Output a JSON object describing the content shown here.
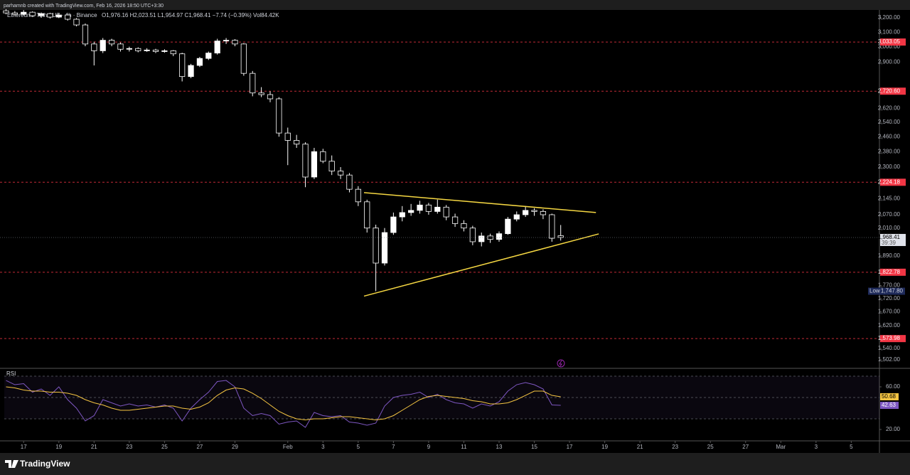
{
  "header": {
    "credit": "parhamnb created with TradingView.com, Feb 16, 2026 18:50 UTC+3:30"
  },
  "footer": {
    "brand": "TradingView"
  },
  "chart_data": [
    {
      "type": "candlestick",
      "title": "Ethereum / TetherUS · 4h · Binance",
      "subtitle": "O1,976.16 H2,023.51 L1,954.97 C1,968.41 −7.74 (−0.39%) Vol84.42K",
      "log": true,
      "xlim": [
        15.9,
        65.6
      ],
      "ylim": [
        1476,
        3251
      ],
      "up_color": "#ffffff",
      "down_color": "#000000",
      "x": [
        16,
        16.5,
        17,
        17.5,
        18,
        18.5,
        19,
        19.5,
        20,
        20.5,
        21,
        21.5,
        22,
        22.5,
        23,
        23.5,
        24,
        24.5,
        25,
        25.5,
        26,
        26.5,
        27,
        27.5,
        28,
        28.5,
        29,
        29.5,
        30,
        30.5,
        31,
        31.5,
        32,
        32.5,
        33,
        33.5,
        34,
        34.5,
        35,
        35.5,
        36,
        36.5,
        37,
        37.5,
        38,
        38.5,
        39,
        39.5,
        40,
        40.5,
        41,
        41.5,
        42,
        42.5,
        43,
        43.5,
        44,
        44.5,
        45,
        45.5,
        46,
        46.5,
        47,
        47.5
      ],
      "ohlc": [
        [
          3250,
          3262,
          3225,
          3235
        ],
        [
          3235,
          3248,
          3215,
          3225
        ],
        [
          3225,
          3255,
          3218,
          3240
        ],
        [
          3240,
          3246,
          3205,
          3215
        ],
        [
          3215,
          3238,
          3200,
          3230
        ],
        [
          3230,
          3236,
          3195,
          3205
        ],
        [
          3205,
          3232,
          3198,
          3220
        ],
        [
          3220,
          3225,
          3180,
          3190
        ],
        [
          3190,
          3198,
          3140,
          3150
        ],
        [
          3150,
          3160,
          3005,
          3020
        ],
        [
          3020,
          3035,
          2880,
          2975
        ],
        [
          2975,
          3060,
          2960,
          3045
        ],
        [
          3045,
          3055,
          3005,
          3020
        ],
        [
          3020,
          3030,
          2970,
          2985
        ],
        [
          2985,
          3002,
          2970,
          2990
        ],
        [
          2990,
          2998,
          2965,
          2975
        ],
        [
          2975,
          2992,
          2968,
          2980
        ],
        [
          2980,
          2988,
          2960,
          2970
        ],
        [
          2970,
          2985,
          2962,
          2975
        ],
        [
          2975,
          2980,
          2940,
          2955
        ],
        [
          2955,
          2962,
          2780,
          2810
        ],
        [
          2810,
          2890,
          2800,
          2880
        ],
        [
          2880,
          2935,
          2870,
          2925
        ],
        [
          2925,
          2970,
          2915,
          2960
        ],
        [
          2960,
          3055,
          2950,
          3040
        ],
        [
          3040,
          3060,
          3020,
          3045
        ],
        [
          3045,
          3052,
          3005,
          3020
        ],
        [
          3020,
          3025,
          2815,
          2830
        ],
        [
          2830,
          2845,
          2690,
          2710
        ],
        [
          2710,
          2745,
          2685,
          2700
        ],
        [
          2700,
          2720,
          2655,
          2675
        ],
        [
          2675,
          2685,
          2460,
          2480
        ],
        [
          2480,
          2510,
          2310,
          2440
        ],
        [
          2440,
          2470,
          2400,
          2420
        ],
        [
          2420,
          2430,
          2200,
          2250
        ],
        [
          2250,
          2400,
          2240,
          2380
        ],
        [
          2380,
          2395,
          2320,
          2330
        ],
        [
          2330,
          2360,
          2260,
          2280
        ],
        [
          2280,
          2300,
          2240,
          2260
        ],
        [
          2260,
          2270,
          2175,
          2190
        ],
        [
          2190,
          2205,
          2110,
          2130
        ],
        [
          2130,
          2140,
          1990,
          2010
        ],
        [
          2010,
          2025,
          1747.8,
          1860
        ],
        [
          1860,
          2010,
          1850,
          1990
        ],
        [
          1990,
          2080,
          1980,
          2060
        ],
        [
          2060,
          2110,
          2040,
          2080
        ],
        [
          2080,
          2120,
          2065,
          2090
        ],
        [
          2090,
          2135,
          2075,
          2115
        ],
        [
          2115,
          2125,
          2070,
          2085
        ],
        [
          2085,
          2140,
          2075,
          2105
        ],
        [
          2105,
          2115,
          2045,
          2060
        ],
        [
          2060,
          2075,
          2015,
          2030
        ],
        [
          2030,
          2045,
          1995,
          2010
        ],
        [
          2010,
          2020,
          1935,
          1950
        ],
        [
          1950,
          1990,
          1930,
          1975
        ],
        [
          1975,
          1985,
          1945,
          1960
        ],
        [
          1960,
          1995,
          1950,
          1985
        ],
        [
          1985,
          2060,
          1980,
          2050
        ],
        [
          2050,
          2085,
          2040,
          2070
        ],
        [
          2070,
          2110,
          2060,
          2090
        ],
        [
          2090,
          2100,
          2065,
          2085
        ],
        [
          2085,
          2095,
          2050,
          2070
        ],
        [
          2070,
          2075,
          1950,
          1965
        ],
        [
          1976.16,
          2023.51,
          1954.97,
          1968.41
        ]
      ],
      "xticks": [
        17,
        19,
        21,
        23,
        25,
        27,
        29,
        {
          "value": 32,
          "label": "Feb"
        },
        {
          "value": 34,
          "label": "3"
        },
        {
          "value": 36,
          "label": "5"
        },
        {
          "value": 38,
          "label": "7"
        },
        {
          "value": 40,
          "label": "9"
        },
        {
          "value": 42,
          "label": "11"
        },
        {
          "value": 44,
          "label": "13"
        },
        {
          "value": 46,
          "label": "15"
        },
        {
          "value": 48,
          "label": "17"
        },
        {
          "value": 50,
          "label": "19"
        },
        {
          "value": 52,
          "label": "21"
        },
        {
          "value": 54,
          "label": "23"
        },
        {
          "value": 56,
          "label": "25"
        },
        {
          "value": 58,
          "label": "27"
        },
        {
          "value": 60,
          "label": "Mar"
        },
        {
          "value": 62,
          "label": "3"
        },
        {
          "value": 64,
          "label": "5"
        }
      ],
      "yticks": [
        {
          "value": 3200,
          "label": "3,200.00"
        },
        {
          "value": 3100,
          "label": "3,100.00"
        },
        {
          "value": 3000,
          "label": "3,000.00"
        },
        {
          "value": 2900,
          "label": "2,900.00"
        },
        {
          "value": 2620,
          "label": "2,620.00"
        },
        {
          "value": 2540,
          "label": "2,540.00"
        },
        {
          "value": 2460,
          "label": "2,460.00"
        },
        {
          "value": 2380,
          "label": "2,380.00"
        },
        {
          "value": 2300,
          "label": "2,300.00"
        },
        {
          "value": 2145,
          "label": "2,145.00"
        },
        {
          "value": 2070,
          "label": "2,070.00"
        },
        {
          "value": 2010,
          "label": "2,010.00"
        },
        {
          "value": 1890,
          "label": "1,890.00"
        },
        {
          "value": 1770,
          "label": "1,770.00"
        },
        {
          "value": 1720,
          "label": "1,720.00"
        },
        {
          "value": 1670,
          "label": "1,670.00"
        },
        {
          "value": 1620,
          "label": "1,620.00"
        },
        {
          "value": 1540,
          "label": "1,540.00"
        },
        {
          "value": 1502,
          "label": "1,502.00"
        }
      ],
      "levels": [
        {
          "value": 3033.05,
          "label": "3,033.05"
        },
        {
          "value": 2720.6,
          "label": "2,720.60"
        },
        {
          "value": 2224.18,
          "label": "2,224.18"
        },
        {
          "value": 1822.78,
          "label": "1,822.78"
        },
        {
          "value": 1573.98,
          "label": "1,573.98"
        }
      ],
      "level_color": "#f23645",
      "last_price": {
        "value": 1968.41,
        "label": "1,968.41",
        "countdown": "39:39"
      },
      "low_label": {
        "text": "Low",
        "value": 1747.8,
        "label": "1,747.80"
      },
      "trendline_color": "#f5d742",
      "trendlines": [
        {
          "x": [
            36.33,
            49.5
          ],
          "y": [
            2174,
            2080
          ]
        },
        {
          "x": [
            36.33,
            49.66
          ],
          "y": [
            1729,
            1984
          ]
        }
      ]
    },
    {
      "type": "line",
      "title": "RSI",
      "xlim": [
        15.9,
        65.6
      ],
      "ylim": [
        9.3,
        76.7
      ],
      "hlines": [
        70,
        50,
        30
      ],
      "yticks": [
        {
          "value": 60,
          "label": "60.00"
        },
        {
          "value": 20,
          "label": "20.00"
        }
      ],
      "x": [
        16,
        16.5,
        17,
        17.5,
        18,
        18.5,
        19,
        19.5,
        20,
        20.5,
        21,
        21.5,
        22,
        22.5,
        23,
        23.5,
        24,
        24.5,
        25,
        25.5,
        26,
        26.5,
        27,
        27.5,
        28,
        28.5,
        29,
        29.5,
        30,
        30.5,
        31,
        31.5,
        32,
        32.5,
        33,
        33.5,
        34,
        34.5,
        35,
        35.5,
        36,
        36.5,
        37,
        37.5,
        38,
        38.5,
        39,
        39.5,
        40,
        40.5,
        41,
        41.5,
        42,
        42.5,
        43,
        43.5,
        44,
        44.5,
        45,
        45.5,
        46,
        46.5,
        47,
        47.5
      ],
      "series": [
        {
          "color": "#7e57c2",
          "label_text_color": "#ffffff",
          "values": [
            66,
            62,
            63,
            55,
            58,
            52,
            60,
            48,
            40,
            28,
            33,
            48,
            45,
            42,
            44,
            42,
            43,
            41,
            43,
            40,
            28,
            40,
            48,
            55,
            65,
            66,
            60,
            40,
            33,
            35,
            33,
            25,
            27,
            28,
            22,
            36,
            33,
            32,
            33,
            27,
            26,
            24,
            26,
            42,
            50,
            52,
            53,
            55,
            50,
            53,
            48,
            45,
            44,
            40,
            44,
            42,
            46,
            56,
            62,
            64,
            62,
            58,
            43,
            42.63
          ]
        },
        {
          "color": "#f5c542",
          "label_text_color": "#000000",
          "values": [
            60,
            59,
            57,
            56,
            56,
            55,
            55,
            54,
            52,
            48,
            45,
            43,
            40,
            38,
            38,
            39,
            40,
            41,
            42,
            42,
            40,
            39,
            41,
            45,
            52,
            57,
            59,
            58,
            54,
            49,
            43,
            37,
            33,
            30,
            29,
            30,
            30,
            31,
            32,
            32,
            31,
            30,
            29,
            30,
            33,
            38,
            43,
            48,
            51,
            52,
            51,
            50,
            49,
            47,
            46,
            44,
            44,
            45,
            48,
            52,
            56,
            56,
            52,
            50.68
          ]
        }
      ]
    }
  ]
}
